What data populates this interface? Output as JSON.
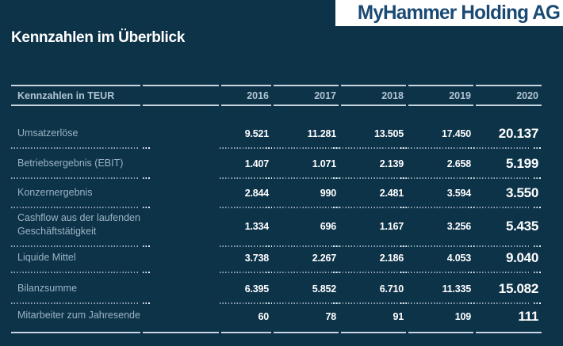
{
  "logo": {
    "text": "MyHammer Holding AG"
  },
  "page": {
    "title": "Kennzahlen im Überblick"
  },
  "table": {
    "header": {
      "label": "Kennzahlen in TEUR",
      "years": [
        "2016",
        "2017",
        "2018",
        "2019",
        "2020"
      ]
    },
    "rows": [
      {
        "label": "Umsatzerlöse",
        "values": [
          "9.521",
          "11.281",
          "13.505",
          "17.450",
          "20.137"
        ]
      },
      {
        "label": "Betriebsergebnis (EBIT)",
        "values": [
          "1.407",
          "1.071",
          "2.139",
          "2.658",
          "5.199"
        ]
      },
      {
        "label": "Konzernergebnis",
        "values": [
          "2.844",
          "990",
          "2.481",
          "3.594",
          "3.550"
        ]
      },
      {
        "label": "Cashflow aus der laufenden Geschäftstätigkeit",
        "values": [
          "1.334",
          "696",
          "1.167",
          "3.256",
          "5.435"
        ]
      },
      {
        "label": "Liquide Mittel",
        "values": [
          "3.738",
          "2.267",
          "2.186",
          "4.053",
          "9.040"
        ]
      },
      {
        "label": "Bilanzsumme",
        "values": [
          "6.395",
          "5.852",
          "6.710",
          "11.335",
          "15.082"
        ]
      },
      {
        "label": "Mitarbeiter zum Jahresende",
        "values": [
          "60",
          "78",
          "91",
          "109",
          "111"
        ]
      }
    ]
  },
  "colors": {
    "background": "#0d3349",
    "logo_background": "#ffffff",
    "logo_text": "#1a4a74",
    "title_text": "#ffffff",
    "header_text": "#b0c4d2",
    "row_label_text": "#9cb3c4",
    "value_text": "#ffffff",
    "rule_line": "#c9d5de"
  }
}
